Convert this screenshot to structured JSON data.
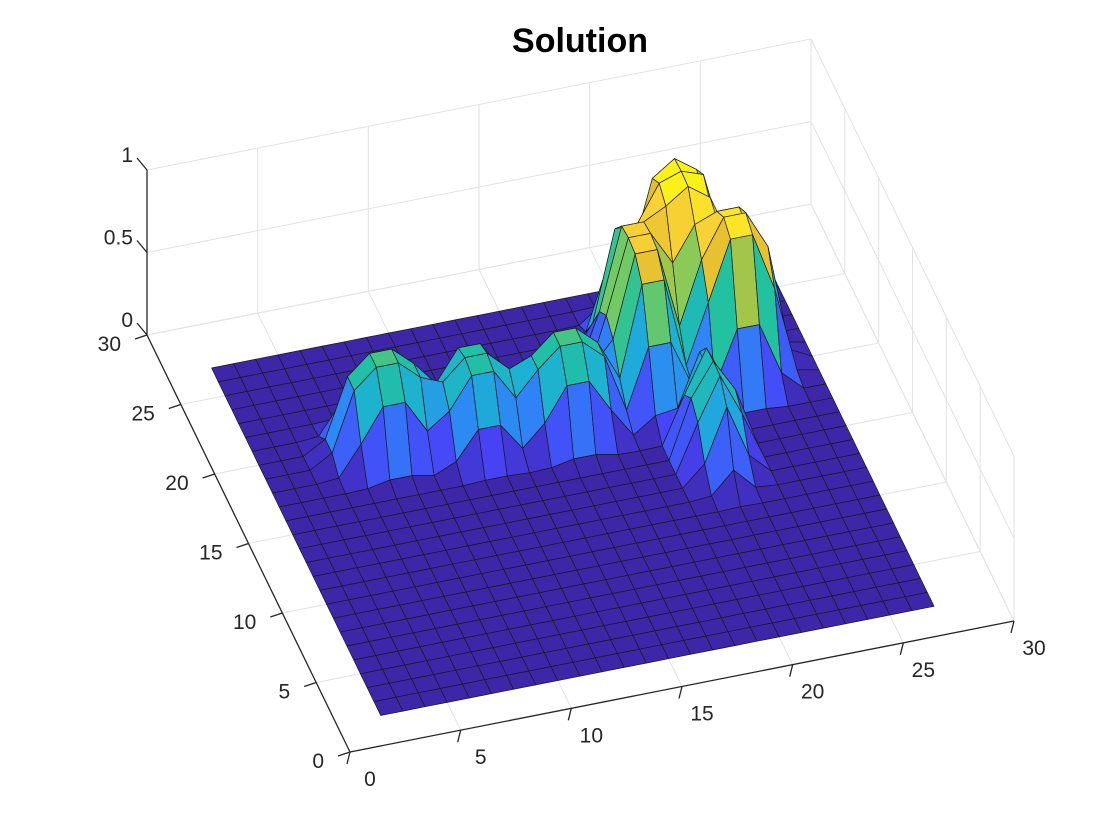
{
  "chart_data": {
    "type": "surface",
    "title": "Solution",
    "xlabel": "",
    "ylabel": "",
    "zlabel": "",
    "xlim": [
      0,
      30
    ],
    "ylim": [
      0,
      30
    ],
    "zlim": [
      0,
      1
    ],
    "x_ticks": [
      "0",
      "5",
      "10",
      "15",
      "20",
      "25",
      "30"
    ],
    "y_ticks": [
      "0",
      "5",
      "10",
      "15",
      "20",
      "25",
      "30"
    ],
    "z_ticks": [
      "0",
      "0.5",
      "1"
    ],
    "grid": true,
    "colormap": "parula",
    "colormap_stops": [
      "#3e26a8",
      "#4743f8",
      "#2e87f7",
      "#1cb1d4",
      "#22c19f",
      "#81cc59",
      "#e3bb2f",
      "#fdd736",
      "#f9fb0e"
    ],
    "grid_points": 25,
    "x_range_data": [
      2,
      27
    ],
    "y_range_data": [
      2,
      27
    ],
    "features": [
      {
        "x": 7.5,
        "y": 19.5,
        "height": 0.55,
        "width_x": 2.2,
        "width_y": 2.0
      },
      {
        "x": 11.5,
        "y": 19.0,
        "height": 0.5,
        "width_x": 2.0,
        "width_y": 2.2
      },
      {
        "x": 15.5,
        "y": 18.5,
        "height": 0.55,
        "width_x": 2.2,
        "width_y": 2.0
      },
      {
        "x": 19.5,
        "y": 21.0,
        "height": 0.85,
        "width_x": 1.6,
        "width_y": 3.5
      },
      {
        "x": 22.0,
        "y": 23.0,
        "height": 1.0,
        "width_x": 2.0,
        "width_y": 3.0
      },
      {
        "x": 23.5,
        "y": 20.0,
        "height": 0.95,
        "width_x": 2.0,
        "width_y": 2.2
      },
      {
        "x": 21.0,
        "y": 15.0,
        "height": 0.55,
        "width_x": 1.2,
        "width_y": 2.8
      }
    ]
  }
}
